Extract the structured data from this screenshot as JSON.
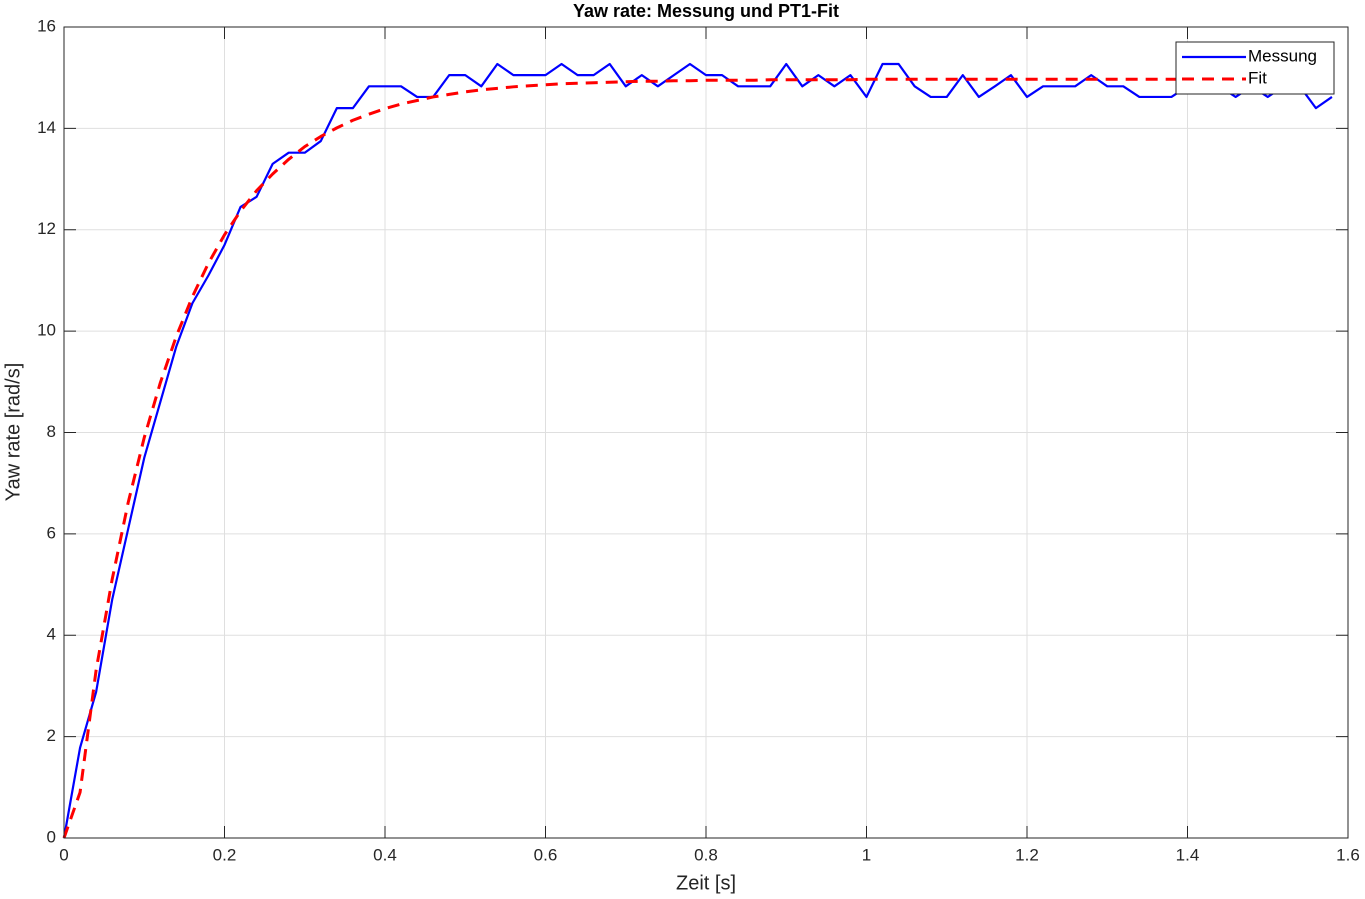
{
  "chart_data": {
    "type": "line",
    "title": "Yaw rate: Messung und PT1-Fit",
    "xlabel": "Zeit [s]",
    "ylabel": "Yaw rate [rad/s]",
    "x": [
      0,
      0.02,
      0.04,
      0.06,
      0.08,
      0.1,
      0.12,
      0.14,
      0.16,
      0.18,
      0.2,
      0.22,
      0.24,
      0.26,
      0.28,
      0.3,
      0.32,
      0.34,
      0.36,
      0.38,
      0.4,
      0.42,
      0.44,
      0.46,
      0.48,
      0.5,
      0.52,
      0.54,
      0.56,
      0.58,
      0.6,
      0.62,
      0.64,
      0.66,
      0.68,
      0.7,
      0.72,
      0.74,
      0.76,
      0.78,
      0.8,
      0.82,
      0.84,
      0.86,
      0.88,
      0.9,
      0.92,
      0.94,
      0.96,
      0.98,
      1,
      1.02,
      1.04,
      1.06,
      1.08,
      1.1,
      1.12,
      1.14,
      1.16,
      1.18,
      1.2,
      1.22,
      1.24,
      1.26,
      1.28,
      1.3,
      1.32,
      1.34,
      1.36,
      1.38,
      1.4,
      1.42,
      1.44,
      1.46,
      1.48,
      1.5,
      1.52,
      1.54,
      1.56,
      1.58
    ],
    "series": [
      {
        "name": "Messung",
        "color": "#0000ff",
        "style": "solid",
        "values": [
          0,
          1.78,
          2.88,
          4.7,
          6.1,
          7.5,
          8.6,
          9.7,
          10.55,
          11.1,
          11.7,
          12.45,
          12.65,
          13.3,
          13.52,
          13.52,
          13.75,
          14.4,
          14.4,
          14.83,
          14.83,
          14.83,
          14.62,
          14.62,
          15.05,
          15.05,
          14.83,
          15.27,
          15.05,
          15.05,
          15.05,
          15.27,
          15.05,
          15.05,
          15.27,
          14.83,
          15.05,
          14.83,
          15.05,
          15.27,
          15.05,
          15.05,
          14.83,
          14.83,
          14.83,
          15.27,
          14.83,
          15.05,
          14.83,
          15.05,
          14.62,
          15.27,
          15.27,
          14.83,
          14.62,
          14.62,
          15.05,
          14.62,
          14.83,
          15.05,
          14.62,
          14.83,
          14.83,
          14.83,
          15.05,
          14.83,
          14.83,
          14.62,
          14.62,
          14.62,
          14.83,
          14.83,
          14.83,
          14.62,
          14.83,
          14.62,
          14.83,
          14.83,
          14.4,
          14.62
        ]
      },
      {
        "name": "Fit",
        "color": "#ff0000",
        "style": "dashed",
        "values": [
          0,
          0.9,
          3.31,
          5.1,
          6.62,
          7.9,
          8.98,
          9.9,
          10.68,
          11.34,
          11.9,
          12.37,
          12.77,
          13.1,
          13.39,
          13.64,
          13.84,
          14.01,
          14.16,
          14.28,
          14.39,
          14.48,
          14.55,
          14.62,
          14.67,
          14.72,
          14.76,
          14.79,
          14.82,
          14.84,
          14.86,
          14.88,
          14.89,
          14.9,
          14.91,
          14.92,
          14.93,
          14.93,
          14.94,
          14.94,
          14.95,
          14.95,
          14.95,
          14.95,
          14.96,
          14.96,
          14.96,
          14.96,
          14.96,
          14.96,
          14.97,
          14.97,
          14.97,
          14.97,
          14.97,
          14.97,
          14.97,
          14.97,
          14.97,
          14.97,
          14.97,
          14.97,
          14.97,
          14.97,
          14.97,
          14.97,
          14.97,
          14.97,
          14.97,
          14.97,
          14.97,
          14.97,
          14.97,
          14.97,
          14.97,
          14.97,
          14.97,
          14.97,
          14.97,
          14.97
        ]
      }
    ],
    "xlim": [
      0,
      1.6
    ],
    "xticks": [
      0,
      0.2,
      0.4,
      0.6,
      0.8,
      1,
      1.2,
      1.4,
      1.6
    ],
    "ylim": [
      0,
      16
    ],
    "yticks": [
      0,
      2,
      4,
      6,
      8,
      10,
      12,
      14,
      16
    ],
    "grid": true,
    "legend": "northeast"
  }
}
